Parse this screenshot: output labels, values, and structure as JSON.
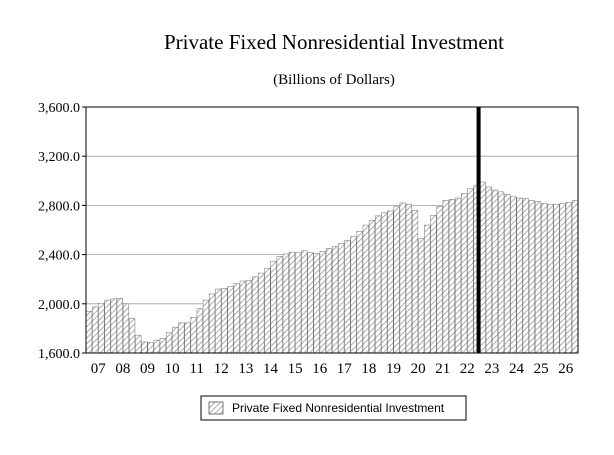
{
  "chart_data": {
    "type": "bar",
    "title": "Private Fixed Nonresidential Investment",
    "subtitle": "(Billions of Dollars)",
    "xlabel": "",
    "ylabel": "",
    "ylim": [
      1600,
      3600
    ],
    "y_ticks": [
      "1,600.0",
      "2,000.0",
      "2,400.0",
      "2,800.0",
      "3,200.0",
      "3,600.0"
    ],
    "y_tick_values": [
      1600,
      2000,
      2400,
      2800,
      3200,
      3600
    ],
    "x_ticks": [
      "07",
      "08",
      "09",
      "10",
      "11",
      "12",
      "13",
      "14",
      "15",
      "16",
      "17",
      "18",
      "19",
      "20",
      "21",
      "22",
      "23",
      "24",
      "25",
      "26"
    ],
    "grid": true,
    "legend": "bottom-center",
    "marker_year": "23",
    "series": [
      {
        "name": "Private Fixed Nonresidential Investment",
        "pattern": "diagonal-hatch",
        "values": [
          1940,
          1975,
          2005,
          2030,
          2040,
          2045,
          2000,
          1880,
          1745,
          1690,
          1685,
          1705,
          1720,
          1765,
          1810,
          1845,
          1845,
          1890,
          1960,
          2030,
          2080,
          2120,
          2125,
          2140,
          2165,
          2185,
          2190,
          2220,
          2250,
          2290,
          2345,
          2385,
          2405,
          2420,
          2415,
          2430,
          2415,
          2410,
          2425,
          2450,
          2465,
          2490,
          2515,
          2545,
          2590,
          2640,
          2680,
          2715,
          2740,
          2755,
          2790,
          2820,
          2810,
          2760,
          2530,
          2640,
          2720,
          2790,
          2840,
          2850,
          2860,
          2895,
          2935,
          2965,
          2990,
          2950,
          2925,
          2910,
          2890,
          2870,
          2860,
          2855,
          2840,
          2830,
          2815,
          2810,
          2810,
          2815,
          2825,
          2840
        ]
      }
    ]
  }
}
